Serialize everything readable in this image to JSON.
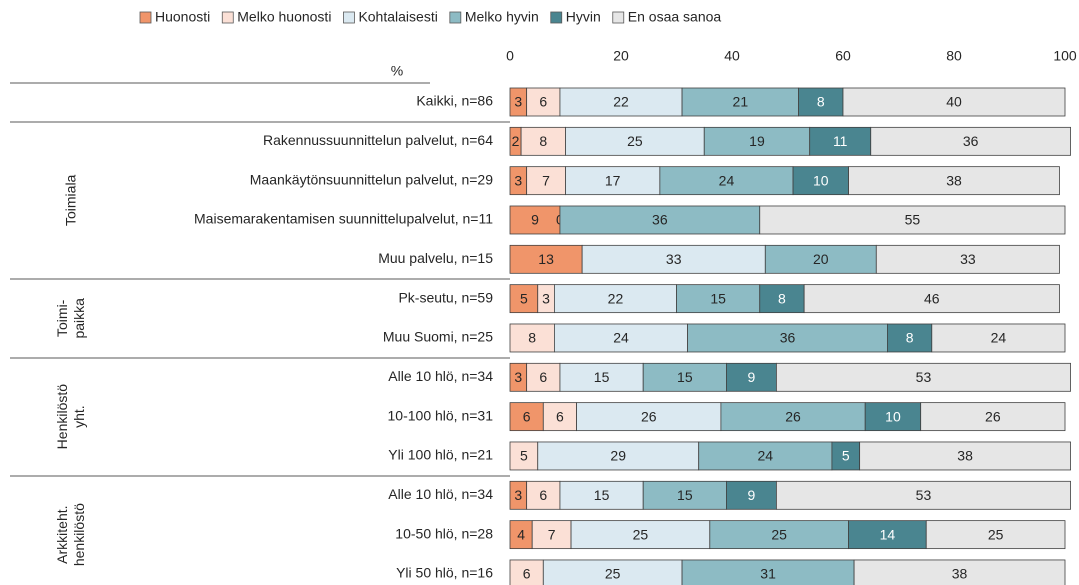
{
  "chart_data": {
    "type": "stacked-bar-horizontal",
    "axis_label": "%",
    "categories": [
      "Kaikki, n=86",
      "Rakennussuunnittelun palvelut, n=64",
      "Maankäytönsuunnittelun palvelut, n=29",
      "Maisemarakentamisen suunnittelupalvelut, n=11",
      "Muu palvelu, n=15",
      "Pk-seutu, n=59",
      "Muu Suomi, n=25",
      "Alle 10 hlö, n=34",
      "10-100 hlö, n=31",
      "Yli 100 hlö, n=21",
      "Alle 10 hlö, n=34",
      "10-50 hlö, n=28",
      "Yli 50 hlö, n=16"
    ],
    "groups": [
      {
        "label_lines": [
          "Toimiala"
        ]
      },
      {
        "label_lines": [
          "Toimi-",
          "paikka"
        ]
      },
      {
        "label_lines": [
          "Henkilöstö",
          "yht."
        ]
      },
      {
        "label_lines": [
          "Arkkiteht.",
          "henkilöstö"
        ]
      }
    ],
    "series": [
      {
        "name": "Huonosti",
        "color": "#f0956a",
        "label_color": "#262626",
        "values": [
          3,
          2,
          3,
          9,
          13,
          5,
          null,
          3,
          6,
          null,
          3,
          4,
          null
        ]
      },
      {
        "name": "Melko huonosti",
        "color": "#fbe0d6",
        "label_color": "#262626",
        "values": [
          6,
          8,
          7,
          0,
          null,
          3,
          8,
          6,
          6,
          5,
          6,
          7,
          6
        ]
      },
      {
        "name": "Kohtalaisesti",
        "color": "#dbe9f1",
        "label_color": "#262626",
        "values": [
          22,
          25,
          17,
          null,
          33,
          22,
          24,
          15,
          26,
          29,
          15,
          25,
          25
        ]
      },
      {
        "name": "Melko hyvin",
        "color": "#8dbbc4",
        "label_color": "#262626",
        "values": [
          21,
          19,
          24,
          36,
          20,
          15,
          36,
          15,
          26,
          24,
          15,
          25,
          31
        ]
      },
      {
        "name": "Hyvin",
        "color": "#4a8590",
        "label_color": "#ffffff",
        "values": [
          8,
          11,
          10,
          null,
          null,
          8,
          8,
          9,
          10,
          5,
          9,
          14,
          null
        ]
      },
      {
        "name": "En osaa sanoa",
        "color": "#e6e6e6",
        "label_color": "#262626",
        "values": [
          40,
          36,
          38,
          55,
          33,
          46,
          24,
          53,
          26,
          38,
          53,
          25,
          38
        ]
      }
    ],
    "xlim": [
      0,
      100
    ],
    "xticks": [
      0,
      20,
      40,
      60,
      80,
      100
    ],
    "legend": "top",
    "grid": false
  }
}
